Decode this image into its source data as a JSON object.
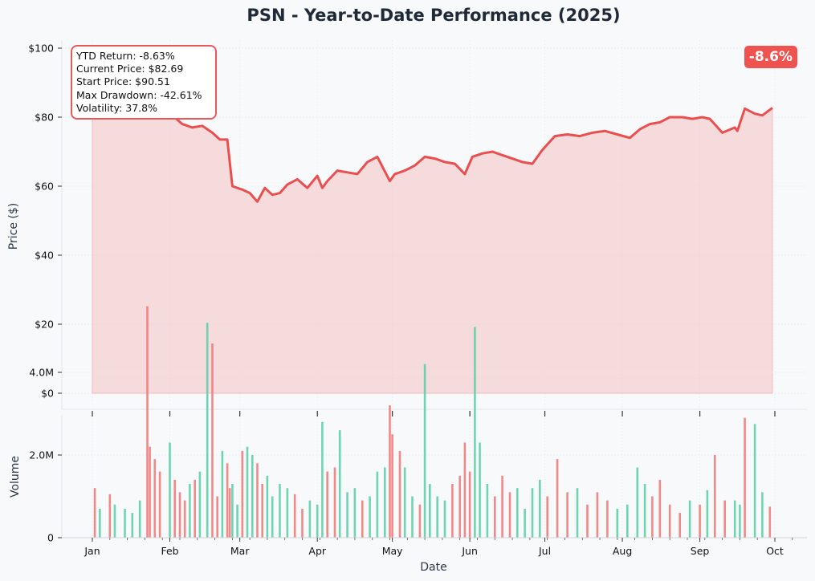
{
  "title": "PSN - Year-to-Date Performance (2025)",
  "stats": {
    "ytd_return": "YTD Return: -8.63%",
    "current_price": "Current Price: $82.69",
    "start_price": "Start Price: $90.51",
    "max_drawdown": "Max Drawdown: -42.61%",
    "volatility": "Volatility: 37.8%"
  },
  "badge": "-8.6%",
  "colors": {
    "line": "#e94f4f",
    "area": "#f5c7c9",
    "volume_up": "#5fcfa8",
    "volume_down": "#ef7c7c",
    "background": "#f7f9fb"
  },
  "chart_data": [
    {
      "type": "area",
      "ylabel": "Price ($)",
      "xlabel": "",
      "ylim": [
        0,
        100
      ],
      "y_ticks": [
        "$0",
        "$20",
        "$40",
        "$60",
        "$80",
        "$100"
      ],
      "grid": true,
      "series": [
        {
          "x": [
            "2025-01-01",
            "2025-01-06",
            "2025-01-11",
            "2025-01-16",
            "2025-01-21",
            "2025-01-25",
            "2025-01-29",
            "2025-02-02",
            "2025-02-06",
            "2025-02-10",
            "2025-02-14",
            "2025-02-18",
            "2025-02-21",
            "2025-02-24",
            "2025-02-26",
            "2025-02-28",
            "2025-03-02",
            "2025-03-05",
            "2025-03-08",
            "2025-03-11",
            "2025-03-14",
            "2025-03-17",
            "2025-03-20",
            "2025-03-24",
            "2025-03-28",
            "2025-04-01",
            "2025-04-03",
            "2025-04-05",
            "2025-04-09",
            "2025-04-13",
            "2025-04-17",
            "2025-04-21",
            "2025-04-25",
            "2025-04-30",
            "2025-05-02",
            "2025-05-06",
            "2025-05-10",
            "2025-05-14",
            "2025-05-18",
            "2025-05-22",
            "2025-05-26",
            "2025-05-30",
            "2025-06-02",
            "2025-06-06",
            "2025-06-10",
            "2025-06-14",
            "2025-06-18",
            "2025-06-22",
            "2025-06-26",
            "2025-06-30",
            "2025-07-05",
            "2025-07-10",
            "2025-07-15",
            "2025-07-20",
            "2025-07-25",
            "2025-07-30",
            "2025-08-04",
            "2025-08-08",
            "2025-08-12",
            "2025-08-16",
            "2025-08-20",
            "2025-08-25",
            "2025-08-29",
            "2025-09-02",
            "2025-09-05",
            "2025-09-10",
            "2025-09-15",
            "2025-09-16",
            "2025-09-19",
            "2025-09-23",
            "2025-09-26",
            "2025-09-30"
          ],
          "values": [
            90.5,
            87.5,
            85.5,
            86.5,
            84.5,
            85.0,
            83.0,
            80.5,
            78.0,
            77.0,
            77.5,
            75.5,
            73.5,
            73.5,
            60.0,
            59.5,
            59.0,
            58.0,
            55.5,
            59.5,
            57.5,
            58.0,
            60.5,
            62.0,
            59.5,
            63.0,
            59.5,
            61.5,
            64.5,
            64.0,
            63.5,
            67.0,
            68.5,
            61.5,
            63.5,
            64.5,
            66.0,
            68.5,
            68.0,
            67.0,
            66.5,
            63.5,
            68.5,
            69.5,
            70.0,
            69.0,
            68.0,
            67.0,
            66.5,
            70.5,
            74.5,
            75.0,
            74.5,
            75.5,
            76.0,
            75.0,
            74.0,
            76.5,
            78.0,
            78.5,
            80.0,
            80.0,
            79.5,
            80.0,
            79.5,
            75.5,
            77.0,
            76.0,
            82.5,
            81.0,
            80.5,
            82.69
          ]
        }
      ]
    },
    {
      "type": "bar",
      "ylabel": "Volume",
      "xlabel": "Date",
      "ylim": [
        0,
        6000000
      ],
      "y_ticks": [
        "0",
        "2.0M",
        "4.0M"
      ],
      "x_ticks": [
        "Jan",
        "Feb",
        "Mar",
        "Apr",
        "May",
        "Jun",
        "Jul",
        "Aug",
        "Sep",
        "Oct"
      ],
      "grid": true,
      "series": [
        {
          "name": "Volume",
          "x": [
            "2025-01-02",
            "2025-01-04",
            "2025-01-08",
            "2025-01-10",
            "2025-01-14",
            "2025-01-17",
            "2025-01-20",
            "2025-01-23",
            "2025-01-24",
            "2025-01-26",
            "2025-01-28",
            "2025-02-01",
            "2025-02-03",
            "2025-02-05",
            "2025-02-07",
            "2025-02-09",
            "2025-02-11",
            "2025-02-13",
            "2025-02-16",
            "2025-02-18",
            "2025-02-20",
            "2025-02-22",
            "2025-02-24",
            "2025-02-25",
            "2025-02-26",
            "2025-02-28",
            "2025-03-02",
            "2025-03-04",
            "2025-03-06",
            "2025-03-08",
            "2025-03-10",
            "2025-03-12",
            "2025-03-14",
            "2025-03-17",
            "2025-03-20",
            "2025-03-23",
            "2025-03-26",
            "2025-03-29",
            "2025-04-01",
            "2025-04-03",
            "2025-04-05",
            "2025-04-08",
            "2025-04-10",
            "2025-04-13",
            "2025-04-16",
            "2025-04-19",
            "2025-04-22",
            "2025-04-25",
            "2025-04-28",
            "2025-04-30",
            "2025-05-01",
            "2025-05-04",
            "2025-05-06",
            "2025-05-09",
            "2025-05-12",
            "2025-05-14",
            "2025-05-16",
            "2025-05-19",
            "2025-05-22",
            "2025-05-25",
            "2025-05-28",
            "2025-05-30",
            "2025-06-01",
            "2025-06-03",
            "2025-06-05",
            "2025-06-08",
            "2025-06-11",
            "2025-06-14",
            "2025-06-17",
            "2025-06-20",
            "2025-06-23",
            "2025-06-26",
            "2025-06-29",
            "2025-07-02",
            "2025-07-06",
            "2025-07-10",
            "2025-07-14",
            "2025-07-18",
            "2025-07-22",
            "2025-07-26",
            "2025-07-30",
            "2025-08-03",
            "2025-08-07",
            "2025-08-10",
            "2025-08-13",
            "2025-08-16",
            "2025-08-20",
            "2025-08-24",
            "2025-08-28",
            "2025-09-01",
            "2025-09-04",
            "2025-09-07",
            "2025-09-11",
            "2025-09-15",
            "2025-09-17",
            "2025-09-19",
            "2025-09-23",
            "2025-09-26",
            "2025-09-29"
          ],
          "values": [
            1200000,
            700000,
            1050000,
            800000,
            700000,
            600000,
            900000,
            5600000,
            2200000,
            1900000,
            1600000,
            2300000,
            1400000,
            1100000,
            900000,
            1300000,
            1400000,
            1600000,
            5200000,
            4700000,
            1000000,
            2100000,
            1800000,
            1200000,
            1300000,
            800000,
            2100000,
            2200000,
            2000000,
            1800000,
            1300000,
            1500000,
            1000000,
            1300000,
            1200000,
            1050000,
            700000,
            900000,
            800000,
            2800000,
            1600000,
            1700000,
            2600000,
            1100000,
            1200000,
            900000,
            1000000,
            1600000,
            1700000,
            3200000,
            2500000,
            2100000,
            1700000,
            1000000,
            800000,
            4200000,
            1300000,
            1000000,
            900000,
            1300000,
            1500000,
            2300000,
            1600000,
            5100000,
            2300000,
            1300000,
            1000000,
            1500000,
            1100000,
            1200000,
            700000,
            1200000,
            1400000,
            1000000,
            1900000,
            1100000,
            1200000,
            800000,
            1100000,
            900000,
            700000,
            800000,
            1700000,
            1300000,
            1000000,
            1400000,
            800000,
            600000,
            900000,
            800000,
            1150000,
            2000000,
            900000,
            900000,
            800000,
            2900000,
            2750000,
            1100000,
            750000
          ],
          "colors": [
            "down",
            "up",
            "down",
            "up",
            "up",
            "up",
            "up",
            "down",
            "down",
            "down",
            "down",
            "up",
            "down",
            "down",
            "down",
            "up",
            "down",
            "up",
            "up",
            "down",
            "down",
            "up",
            "down",
            "down",
            "up",
            "up",
            "down",
            "up",
            "up",
            "down",
            "down",
            "up",
            "up",
            "up",
            "up",
            "down",
            "down",
            "up",
            "up",
            "up",
            "down",
            "down",
            "up",
            "up",
            "up",
            "down",
            "up",
            "up",
            "up",
            "down",
            "down",
            "down",
            "up",
            "up",
            "down",
            "up",
            "up",
            "up",
            "up",
            "down",
            "down",
            "down",
            "down",
            "up",
            "up",
            "up",
            "down",
            "down",
            "down",
            "up",
            "up",
            "up",
            "up",
            "down",
            "down",
            "down",
            "up",
            "down",
            "down",
            "down",
            "up",
            "up",
            "up",
            "up",
            "down",
            "down",
            "down",
            "down",
            "up",
            "down",
            "up",
            "down",
            "down",
            "up",
            "up",
            "down",
            "up",
            "up",
            "down"
          ]
        }
      ]
    }
  ]
}
